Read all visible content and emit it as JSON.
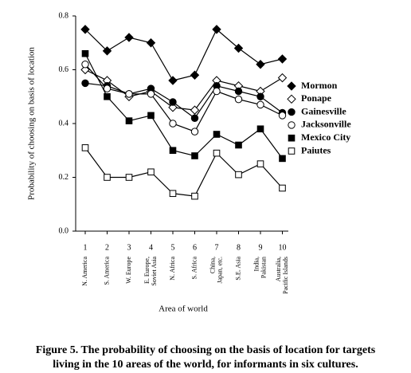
{
  "chart_data": {
    "type": "line",
    "y_label": "Probability of choosing on basis of location",
    "x_label": "Area of world",
    "caption": [
      "Figure 5. The probability of choosing on the basis of location for targets",
      "living in the 10 areas of the world, for informants in six cultures."
    ],
    "x": [
      1,
      2,
      3,
      4,
      5,
      6,
      7,
      8,
      9,
      10
    ],
    "xticks": [
      1,
      2,
      3,
      4,
      5,
      6,
      7,
      8,
      9,
      10
    ],
    "xlim": [
      0.5,
      10.5
    ],
    "categories": [
      [
        "N. America"
      ],
      [
        "S. America"
      ],
      [
        "W. Europe"
      ],
      [
        "E. Europe,",
        "Soviet Asia"
      ],
      [
        "N. Africa"
      ],
      [
        "S. Africa"
      ],
      [
        "China,",
        "Japan, etc."
      ],
      [
        "S.E. Asia"
      ],
      [
        "India,",
        "Pakistan"
      ],
      [
        "Australia,",
        "Pacific Islands"
      ]
    ],
    "ylim": [
      0,
      0.8
    ],
    "yticks": [
      {
        "value": 0,
        "label": "0.0"
      },
      0.2,
      0.4,
      0.6,
      0.8
    ],
    "legend": "upper right",
    "series": [
      {
        "name": "Mormon",
        "color": "#000000",
        "marker": "diamond-filled",
        "values": [
          0.75,
          0.67,
          0.72,
          0.7,
          0.56,
          0.58,
          0.75,
          0.68,
          0.62,
          0.64
        ]
      },
      {
        "name": "Ponape",
        "color": "#000000",
        "marker": "diamond-open",
        "values": [
          0.6,
          0.56,
          0.5,
          0.52,
          0.46,
          0.45,
          0.56,
          0.54,
          0.52,
          0.57
        ]
      },
      {
        "name": "Gainesville",
        "color": "#000000",
        "marker": "circle-filled",
        "values": [
          0.55,
          0.54,
          0.51,
          0.53,
          0.48,
          0.42,
          0.54,
          0.52,
          0.5,
          0.44
        ]
      },
      {
        "name": "Jacksonville",
        "color": "#000000",
        "marker": "circle-open",
        "values": [
          0.62,
          0.53,
          0.51,
          0.51,
          0.4,
          0.37,
          0.52,
          0.49,
          0.47,
          0.43
        ]
      },
      {
        "name": "Mexico City",
        "color": "#000000",
        "marker": "square-filled",
        "values": [
          0.66,
          0.5,
          0.41,
          0.43,
          0.3,
          0.28,
          0.36,
          0.32,
          0.38,
          0.27
        ]
      },
      {
        "name": "Paiutes",
        "color": "#000000",
        "marker": "square-open",
        "values": [
          0.31,
          0.2,
          0.2,
          0.22,
          0.14,
          0.13,
          0.29,
          0.21,
          0.25,
          0.16
        ]
      }
    ]
  }
}
